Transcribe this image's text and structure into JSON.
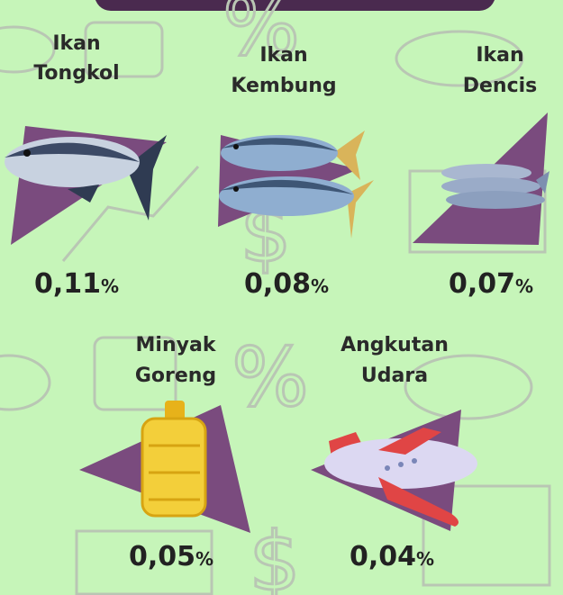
{
  "items": [
    {
      "label": [
        "Ikan",
        "Tongkol"
      ],
      "value": "0,11",
      "unit": "%"
    },
    {
      "label": [
        "Ikan",
        "Kembung"
      ],
      "value": "0,08",
      "unit": "%"
    },
    {
      "label": [
        "Ikan",
        "Dencis"
      ],
      "value": "0,07",
      "unit": "%"
    },
    {
      "label": [
        "Minyak",
        "Goreng"
      ],
      "value": "0,05",
      "unit": "%"
    },
    {
      "label": [
        "Angkutan",
        "Udara"
      ],
      "value": "0,04",
      "unit": "%"
    }
  ]
}
